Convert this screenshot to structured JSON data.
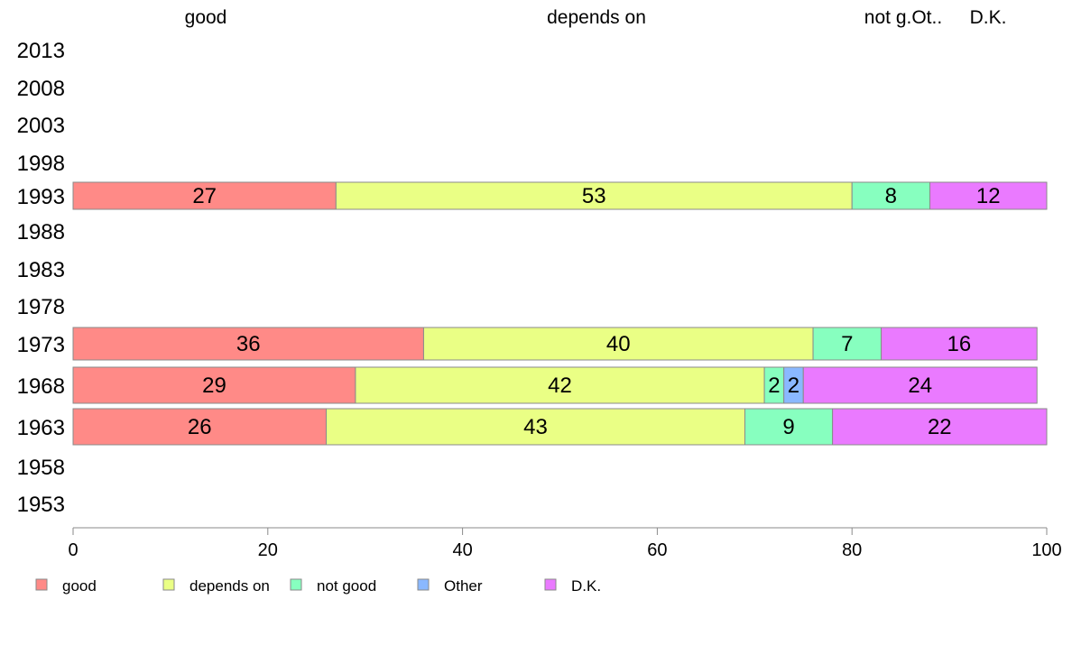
{
  "chart_data": {
    "type": "bar",
    "orientation": "horizontal",
    "stacked": true,
    "categories": [
      "2013",
      "2008",
      "2003",
      "1998",
      "1993",
      "1988",
      "1983",
      "1978",
      "1973",
      "1968",
      "1963",
      "1958",
      "1953"
    ],
    "series": [
      {
        "name": "good",
        "color": "#ff8a87",
        "values": [
          null,
          null,
          null,
          null,
          27,
          null,
          null,
          null,
          36,
          29,
          26,
          null,
          null
        ]
      },
      {
        "name": "depends on",
        "color": "#eaff85",
        "values": [
          null,
          null,
          null,
          null,
          53,
          null,
          null,
          null,
          40,
          42,
          43,
          null,
          null
        ]
      },
      {
        "name": "not good",
        "color": "#87ffbf",
        "values": [
          null,
          null,
          null,
          null,
          8,
          null,
          null,
          null,
          7,
          2,
          9,
          null,
          null
        ]
      },
      {
        "name": "Other",
        "color": "#8ab8ff",
        "values": [
          null,
          null,
          null,
          null,
          0,
          null,
          null,
          null,
          0,
          2,
          0,
          null,
          null
        ]
      },
      {
        "name": "D.K.",
        "color": "#ea7aff",
        "values": [
          null,
          null,
          null,
          null,
          12,
          null,
          null,
          null,
          16,
          24,
          22,
          null,
          null
        ]
      }
    ],
    "top_labels": [
      "good",
      "depends on",
      "not g.Ot..",
      "D.K."
    ],
    "xlim": [
      0,
      100
    ],
    "xticks": [
      "0",
      "20",
      "40",
      "60",
      "80",
      "100"
    ],
    "legend": [
      "good",
      "depends on",
      "not good",
      "Other",
      "D.K."
    ],
    "legend_position": "bottom",
    "grid": false
  }
}
